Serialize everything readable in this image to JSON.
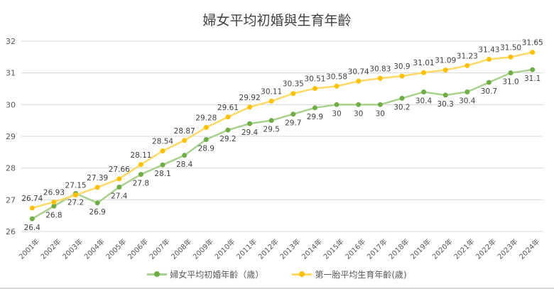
{
  "chart_data": {
    "type": "line",
    "title": "婦女平均初婚與生育年齡",
    "categories": [
      "2001年",
      "2002年",
      "2003年",
      "2004年",
      "2005年",
      "2006年",
      "2007年",
      "2008年",
      "2009年",
      "2010年",
      "2011年",
      "2012年",
      "2013年",
      "2014年",
      "2015年",
      "2016年",
      "2017年",
      "2018年",
      "2019年",
      "2020年",
      "2021年",
      "2022年",
      "2023年",
      "2024年"
    ],
    "ylim": [
      26,
      32
    ],
    "yticks": [
      26,
      27,
      28,
      29,
      30,
      31,
      32
    ],
    "grid": true,
    "legend_position": "bottom",
    "series": [
      {
        "name": "婦女平均初婚年齡（歲）",
        "color": "#70ad47",
        "line_color": "#a9d18e",
        "values": [
          26.4,
          26.8,
          27.2,
          26.9,
          27.4,
          27.8,
          28.1,
          28.4,
          28.9,
          29.2,
          29.4,
          29.5,
          29.7,
          29.9,
          30,
          30,
          30,
          30.2,
          30.4,
          30.3,
          30.4,
          30.7,
          31.0,
          31.1
        ],
        "labels": [
          "26.4",
          "26.8",
          "27.2",
          "26.9",
          "27.4",
          "27.8",
          "28.1",
          "28.4",
          "28.9",
          "29.2",
          "29.4",
          "29.5",
          "29.7",
          "29.9",
          "30",
          "30",
          "30",
          "30.2",
          "30.4",
          "30.3",
          "30.4",
          "30.7",
          "31.0",
          "31.1"
        ]
      },
      {
        "name": "第一胎平均生育年齡(歲)",
        "color": "#ffc000",
        "line_color": "#ffd966",
        "values": [
          26.74,
          26.93,
          27.15,
          27.39,
          27.66,
          28.11,
          28.54,
          28.87,
          29.28,
          29.61,
          29.92,
          30.11,
          30.35,
          30.51,
          30.58,
          30.74,
          30.83,
          30.9,
          31.01,
          31.09,
          31.23,
          31.43,
          31.5,
          31.65
        ],
        "labels": [
          "26.74",
          "26.93",
          "27.15",
          "27.39",
          "27.66",
          "28.11",
          "28.54",
          "28.87",
          "29.28",
          "29.61",
          "29.92",
          "30.11",
          "30.35",
          "30.51",
          "30.58",
          "30.74",
          "30.83",
          "30.9",
          "31.01",
          "31.09",
          "31.23",
          "31.43",
          "31.50",
          "31.65"
        ]
      }
    ]
  }
}
